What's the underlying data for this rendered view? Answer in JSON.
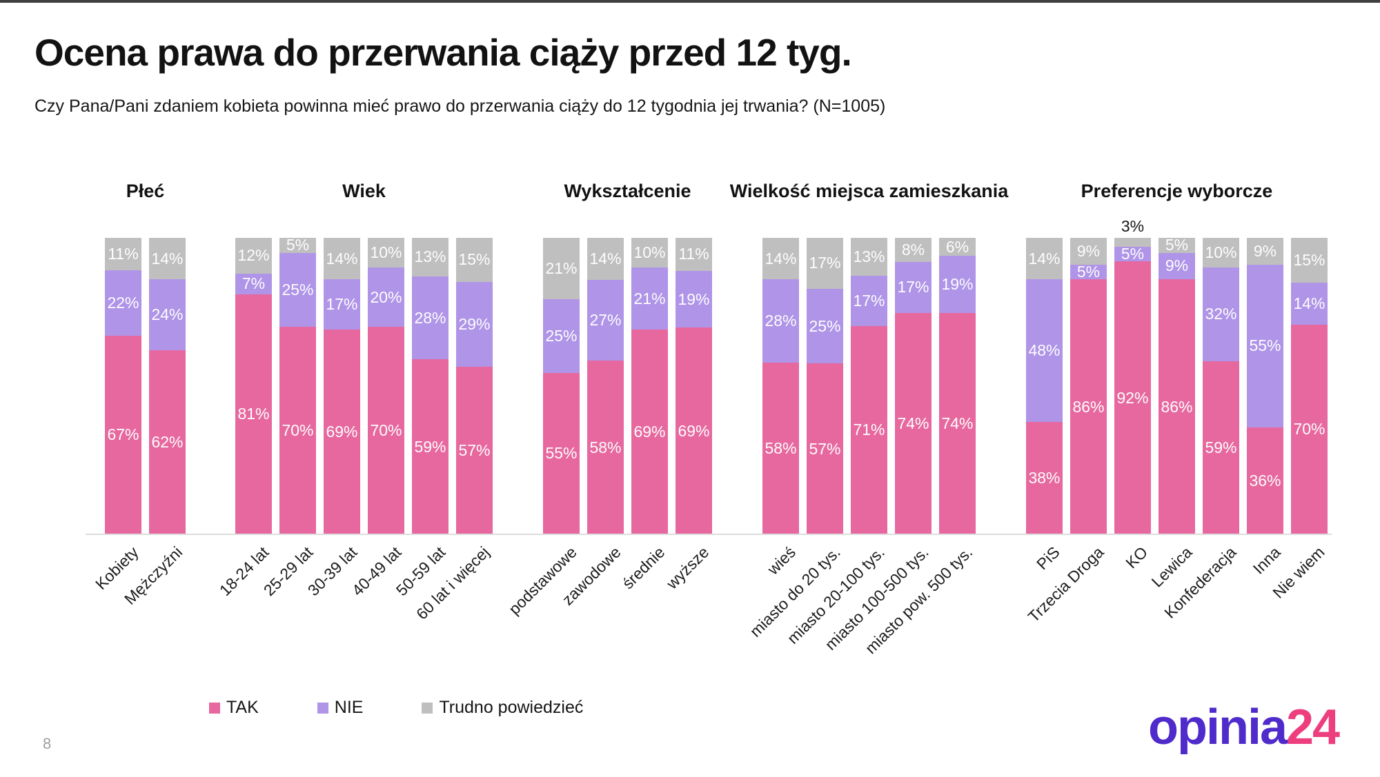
{
  "page": {
    "title": "Ocena prawa do przerwania ciąży przed 12 tyg.",
    "subtitle": "Czy Pana/Pani zdaniem kobieta powinna mieć prawo do przerwania ciąży do 12 tygodnia jej trwania? (N=1005)",
    "page_number": "8"
  },
  "colors": {
    "tak": "#E7689F",
    "nie": "#AF94E8",
    "td": "#BFBFBF",
    "baseline": "#DCDCDC",
    "logo_purple": "#4F2BCB",
    "logo_pink": "#ED3E7E"
  },
  "legend": {
    "position": "bottom",
    "items": [
      {
        "label": "TAK",
        "series": "tak"
      },
      {
        "label": "NIE",
        "series": "nie"
      },
      {
        "label": "Trudno powiedzieć",
        "series": "td"
      }
    ]
  },
  "logo": {
    "text_primary": "opinia",
    "text_accent": "24"
  },
  "chart_data": {
    "type": "bar",
    "stacked": true,
    "value_unit": "%",
    "ylim": [
      0,
      100
    ],
    "grid": false,
    "series_order": [
      "tak",
      "nie",
      "td"
    ],
    "series_names": {
      "tak": "TAK",
      "nie": "NIE",
      "td": "Trudno powiedzieć"
    },
    "legend_position": "bottom",
    "groups": [
      {
        "title": "Płeć",
        "bars": [
          {
            "category": "Kobiety",
            "tak": 67,
            "nie": 22,
            "td": 11
          },
          {
            "category": "Mężczyźni",
            "tak": 62,
            "nie": 24,
            "td": 14
          }
        ]
      },
      {
        "title": "Wiek",
        "bars": [
          {
            "category": "18-24 lat",
            "tak": 81,
            "nie": 7,
            "td": 12
          },
          {
            "category": "25-29 lat",
            "tak": 70,
            "nie": 25,
            "td": 5
          },
          {
            "category": "30-39 lat",
            "tak": 69,
            "nie": 17,
            "td": 14
          },
          {
            "category": "40-49 lat",
            "tak": 70,
            "nie": 20,
            "td": 10
          },
          {
            "category": "50-59 lat",
            "tak": 59,
            "nie": 28,
            "td": 13
          },
          {
            "category": "60 lat i więcej",
            "tak": 57,
            "nie": 29,
            "td": 15
          }
        ]
      },
      {
        "title": "Wykształcenie",
        "bars": [
          {
            "category": "podstawowe",
            "tak": 55,
            "nie": 25,
            "td": 21
          },
          {
            "category": "zawodowe",
            "tak": 58,
            "nie": 27,
            "td": 14
          },
          {
            "category": "średnie",
            "tak": 69,
            "nie": 21,
            "td": 10
          },
          {
            "category": "wyższe",
            "tak": 69,
            "nie": 19,
            "td": 11
          }
        ]
      },
      {
        "title": "Wielkość miejsca zamieszkania",
        "bars": [
          {
            "category": "wieś",
            "tak": 58,
            "nie": 28,
            "td": 14
          },
          {
            "category": "miasto do 20 tys.",
            "tak": 57,
            "nie": 25,
            "td": 17
          },
          {
            "category": "miasto 20-100 tys.",
            "tak": 71,
            "nie": 17,
            "td": 13
          },
          {
            "category": "miasto 100-500 tys.",
            "tak": 74,
            "nie": 17,
            "td": 8
          },
          {
            "category": "miasto pow. 500 tys.",
            "tak": 74,
            "nie": 19,
            "td": 6
          }
        ]
      },
      {
        "title": "Preferencje wyborcze",
        "bars": [
          {
            "category": "PiS",
            "tak": 38,
            "nie": 48,
            "td": 14
          },
          {
            "category": "Trzecia Droga",
            "tak": 86,
            "nie": 5,
            "td": 9
          },
          {
            "category": "KO",
            "tak": 92,
            "nie": 5,
            "td": 3,
            "td_label_outside": true
          },
          {
            "category": "Lewica",
            "tak": 86,
            "nie": 9,
            "td": 5
          },
          {
            "category": "Konfederacja",
            "tak": 59,
            "nie": 32,
            "td": 10
          },
          {
            "category": "Inna",
            "tak": 36,
            "nie": 55,
            "td": 9
          },
          {
            "category": "Nie wiem",
            "tak": 70,
            "nie": 14,
            "td": 15
          }
        ]
      }
    ]
  }
}
